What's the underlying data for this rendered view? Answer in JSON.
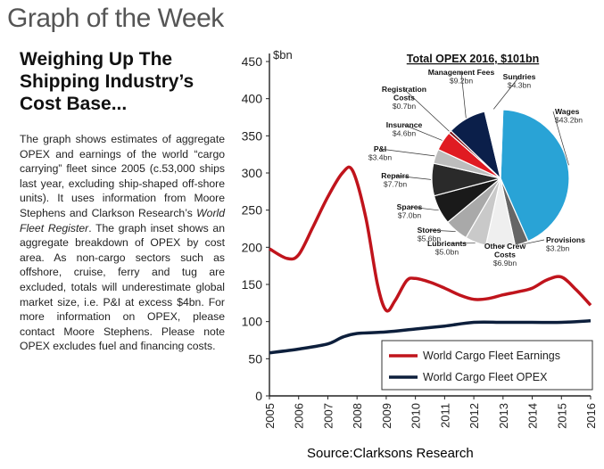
{
  "page": {
    "title": "Graph of the Week",
    "headline": "Weighing Up The Shipping Industry’s Cost Base...",
    "body_1": "The graph shows estimates of aggregate OPEX and earnings of the world “cargo carrying” fleet since 2005 (c.53,000 ships last year, excluding ship-shaped off-shore units). It uses information from Moore Stephens and Clarkson Research’s ",
    "body_em": "World Fleet Register",
    "body_2": ". The graph inset shows an aggregate breakdown of OPEX by cost area. As non-cargo sectors such as offshore, cruise, ferry and tug are excluded, totals will underestimate global market size, i.e. P&I at excess $4bn. For more information on OPEX, please contact Moore Stephens. Please note OPEX excludes fuel and financing costs.",
    "source": "Source:Clarksons Research"
  },
  "chart_data": [
    {
      "type": "line",
      "ylabel": "$bn",
      "ylim": [
        0,
        450
      ],
      "yticks": [
        0,
        50,
        100,
        150,
        200,
        250,
        300,
        350,
        400,
        450
      ],
      "x": [
        "2005",
        "2006",
        "2007",
        "2008",
        "2009",
        "2010",
        "2011",
        "2012",
        "2013",
        "2014",
        "2015",
        "2016"
      ],
      "grid": false,
      "legend_position": "bottom-right",
      "series": [
        {
          "name": "World Cargo Fleet Earnings",
          "color": "#c0141c",
          "points": [
            [
              2005,
              198
            ],
            [
              2005.6,
              185
            ],
            [
              2006,
              190
            ],
            [
              2006.5,
              228
            ],
            [
              2007,
              268
            ],
            [
              2007.5,
              300
            ],
            [
              2007.85,
              303
            ],
            [
              2008.3,
              240
            ],
            [
              2008.7,
              150
            ],
            [
              2009,
              115
            ],
            [
              2009.3,
              128
            ],
            [
              2009.7,
              155
            ],
            [
              2010,
              158
            ],
            [
              2010.5,
              153
            ],
            [
              2011,
              145
            ],
            [
              2011.5,
              136
            ],
            [
              2012,
              130
            ],
            [
              2012.5,
              131
            ],
            [
              2013,
              136
            ],
            [
              2013.5,
              140
            ],
            [
              2014,
              145
            ],
            [
              2014.5,
              156
            ],
            [
              2015,
              160
            ],
            [
              2015.5,
              143
            ],
            [
              2016,
              122
            ]
          ]
        },
        {
          "name": "World Cargo Fleet OPEX",
          "color": "#0d1f3c",
          "points": [
            [
              2005,
              58
            ],
            [
              2006,
              63
            ],
            [
              2007,
              70
            ],
            [
              2007.5,
              79
            ],
            [
              2008,
              84
            ],
            [
              2009,
              86
            ],
            [
              2010,
              90
            ],
            [
              2011,
              94
            ],
            [
              2012,
              99
            ],
            [
              2013,
              99
            ],
            [
              2014,
              99
            ],
            [
              2015,
              99
            ],
            [
              2016,
              101
            ]
          ]
        }
      ]
    },
    {
      "type": "pie",
      "title": "Total OPEX 2016, $101bn",
      "slices": [
        {
          "name": "Wages",
          "value_label": "$43.2bn",
          "value": 43.2,
          "color": "#29a3d6"
        },
        {
          "name": "Provisions",
          "value_label": "$3.2bn",
          "value": 3.2,
          "color": "#666666"
        },
        {
          "name": "Other Crew Costs",
          "value_label": "$6.9bn",
          "value": 6.9,
          "color": "#efefef"
        },
        {
          "name": "Lubricants",
          "value_label": "$5.0bn",
          "value": 5.0,
          "color": "#c9c9c9"
        },
        {
          "name": "Stores",
          "value_label": "$5.6bn",
          "value": 5.6,
          "color": "#a9a9a9"
        },
        {
          "name": "Spares",
          "value_label": "$7.0bn",
          "value": 7.0,
          "color": "#1a1a1a"
        },
        {
          "name": "Repairs",
          "value_label": "$7.7bn",
          "value": 7.7,
          "color": "#2a2a2a"
        },
        {
          "name": "P&I",
          "value_label": "$3.4bn",
          "value": 3.4,
          "color": "#bdbdbd"
        },
        {
          "name": "Insurance",
          "value_label": "$4.6bn",
          "value": 4.6,
          "color": "#e01b22"
        },
        {
          "name": "Registration Costs",
          "value_label": "$0.7bn",
          "value": 0.7,
          "color": "#7a0d12"
        },
        {
          "name": "Management Fees",
          "value_label": "$9.2bn",
          "value": 9.2,
          "color": "#0b1f4a"
        },
        {
          "name": "Sundries",
          "value_label": "$4.3bn",
          "value": 4.3,
          "color": "#ffffff"
        }
      ]
    }
  ]
}
